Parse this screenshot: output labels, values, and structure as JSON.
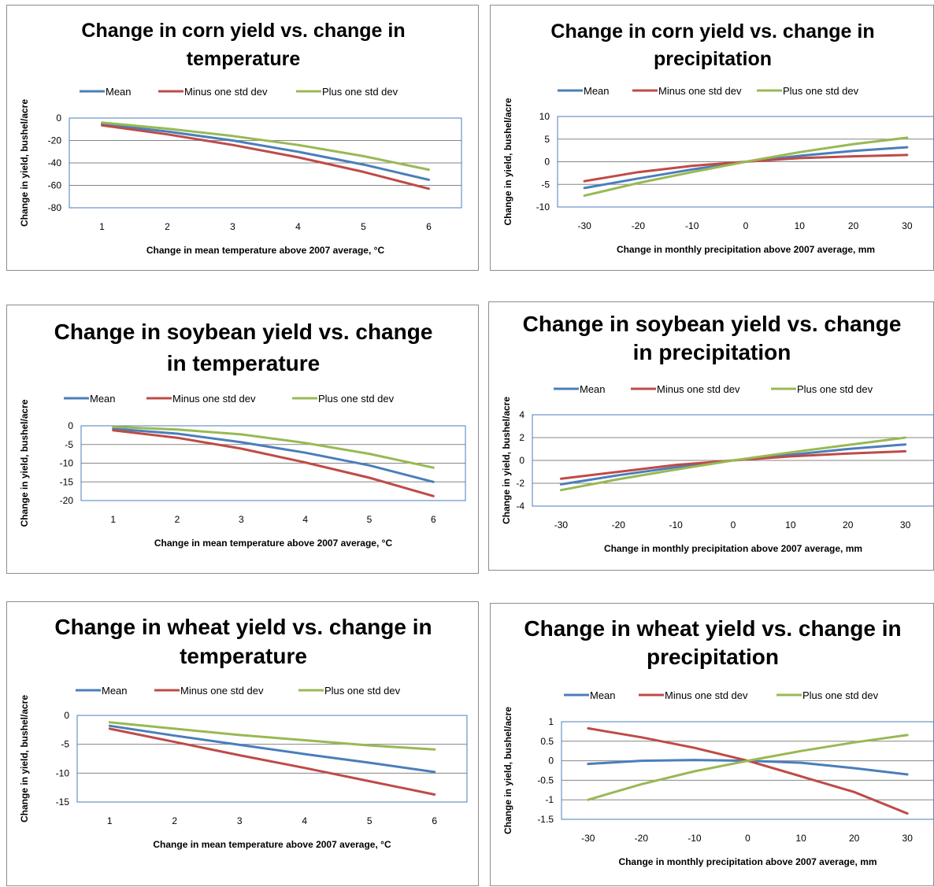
{
  "colors": {
    "mean": "#4a7ebb",
    "minus": "#be4b48",
    "plus": "#98b954",
    "grid": "#868686",
    "axis": "#4a7ebb"
  },
  "chart_data": [
    {
      "type": "line",
      "title": "Change in corn yield vs. change in temperature",
      "title_lines": [
        "Change in corn yield vs. change in",
        "temperature"
      ],
      "xlabel": "Change in mean temperature above 2007 average, °C",
      "ylabel": "Change in yield,  bushel/acre",
      "x": [
        "1",
        "2",
        "3",
        "4",
        "5",
        "6"
      ],
      "ylim": [
        -80,
        0
      ],
      "yticks": [
        "0",
        "-20",
        "-40",
        "-60",
        "-80"
      ],
      "legend": "top",
      "series": [
        {
          "name": "Mean",
          "values": [
            -5.5,
            -12,
            -20,
            -30,
            -41.5,
            -55
          ]
        },
        {
          "name": "Minus one std dev",
          "values": [
            -6.5,
            -14.5,
            -24,
            -35,
            -48,
            -63
          ]
        },
        {
          "name": "Plus one std dev",
          "values": [
            -4,
            -9.5,
            -16,
            -24,
            -34,
            -46
          ]
        }
      ]
    },
    {
      "type": "line",
      "title": "Change in corn yield vs. change in precipitation",
      "title_lines": [
        "Change in corn yield vs. change in",
        "precipitation"
      ],
      "xlabel": "Change in monthly precipitation above 2007 average, mm",
      "ylabel": "Change in yield,  bushel/acre",
      "x": [
        "-30",
        "-20",
        "-10",
        "0",
        "10",
        "20",
        "30"
      ],
      "ylim": [
        -10,
        10
      ],
      "yticks": [
        "10",
        "5",
        "0",
        "-5",
        "-10"
      ],
      "legend": "top",
      "series": [
        {
          "name": "Mean",
          "values": [
            -5.8,
            -3.7,
            -1.7,
            0,
            1.3,
            2.4,
            3.2
          ]
        },
        {
          "name": "Minus one std dev",
          "values": [
            -4.3,
            -2.3,
            -0.9,
            0,
            0.8,
            1.2,
            1.5
          ]
        },
        {
          "name": "Plus one std dev",
          "values": [
            -7.5,
            -4.7,
            -2.3,
            0,
            2.1,
            3.9,
            5.3
          ]
        }
      ]
    },
    {
      "type": "line",
      "title": "Change in soybean yield vs. change in temperature",
      "title_lines": [
        "Change in soybean yield vs. change",
        "in temperature"
      ],
      "xlabel": "Change in mean temperature above 2007 average, °C",
      "ylabel": "Change in yield,  bushel/acre",
      "x": [
        "1",
        "2",
        "3",
        "4",
        "5",
        "6"
      ],
      "ylim": [
        -20,
        0
      ],
      "yticks": [
        "0",
        "-5",
        "-10",
        "-15",
        "-20"
      ],
      "legend": "top",
      "series": [
        {
          "name": "Mean",
          "values": [
            -0.8,
            -2.1,
            -4.4,
            -7.2,
            -10.6,
            -15
          ]
        },
        {
          "name": "Minus one std dev",
          "values": [
            -1.2,
            -3.2,
            -6.1,
            -9.8,
            -13.9,
            -18.8
          ]
        },
        {
          "name": "Plus one std dev",
          "values": [
            -0.3,
            -1,
            -2.3,
            -4.6,
            -7.5,
            -11.2
          ]
        }
      ]
    },
    {
      "type": "line",
      "title": "Change in soybean yield vs. change in precipitation",
      "title_lines": [
        "Change in soybean yield vs. change",
        "in precipitation"
      ],
      "xlabel": "Change in monthly precipitation above 2007 average, mm",
      "ylabel": "Change in yield,  bushel/acre",
      "x": [
        "-30",
        "-20",
        "-10",
        "0",
        "10",
        "20",
        "30"
      ],
      "ylim": [
        -4,
        4
      ],
      "yticks": [
        "4",
        "2",
        "0",
        "-2",
        "-4"
      ],
      "legend": "top",
      "series": [
        {
          "name": "Mean",
          "values": [
            -2.1,
            -1.3,
            -0.6,
            0,
            0.5,
            1,
            1.4
          ]
        },
        {
          "name": "Minus one std dev",
          "values": [
            -1.6,
            -1,
            -0.4,
            0,
            0.35,
            0.6,
            0.8
          ]
        },
        {
          "name": "Plus one std dev",
          "values": [
            -2.6,
            -1.65,
            -0.8,
            0,
            0.7,
            1.35,
            2
          ]
        }
      ]
    },
    {
      "type": "line",
      "title": "Change in wheat yield vs. change in temperature",
      "title_lines": [
        "Change in wheat yield vs. change in",
        "temperature"
      ],
      "xlabel": "Change in mean temperature above 2007 average, °C",
      "ylabel": "Change in yield,  bushel/acre",
      "x": [
        "1",
        "2",
        "3",
        "4",
        "5",
        "6"
      ],
      "ylim": [
        -15,
        0
      ],
      "yticks": [
        "0",
        "-5",
        "-10",
        "-15"
      ],
      "legend": "top",
      "series": [
        {
          "name": "Mean",
          "values": [
            -1.8,
            -3.5,
            -5.1,
            -6.7,
            -8.2,
            -9.8
          ]
        },
        {
          "name": "Minus one std dev",
          "values": [
            -2.3,
            -4.6,
            -6.9,
            -9.1,
            -11.4,
            -13.7
          ]
        },
        {
          "name": "Plus one std dev",
          "values": [
            -1.2,
            -2.3,
            -3.4,
            -4.3,
            -5.2,
            -5.9
          ]
        }
      ]
    },
    {
      "type": "line",
      "title": "Change in wheat yield vs. change in precipitation",
      "title_lines": [
        "Change in wheat yield vs. change in",
        "precipitation"
      ],
      "xlabel": "Change in monthly precipitation above 2007 average, mm",
      "ylabel": "Change in yield,  bushel/acre",
      "x": [
        "-30",
        "-20",
        "-10",
        "0",
        "10",
        "20",
        "30"
      ],
      "ylim": [
        -1.5,
        1
      ],
      "yticks": [
        "1",
        "0.5",
        "0",
        "-0.5",
        "-1",
        "-1.5"
      ],
      "legend": "top",
      "series": [
        {
          "name": "Mean",
          "values": [
            -0.08,
            0,
            0.02,
            0,
            -0.05,
            -0.19,
            -0.35
          ]
        },
        {
          "name": "Minus one std dev",
          "values": [
            0.83,
            0.6,
            0.33,
            0,
            -0.4,
            -0.8,
            -1.35
          ]
        },
        {
          "name": "Plus one std dev",
          "values": [
            -1,
            -0.6,
            -0.27,
            0,
            0.25,
            0.47,
            0.66
          ]
        }
      ]
    }
  ]
}
